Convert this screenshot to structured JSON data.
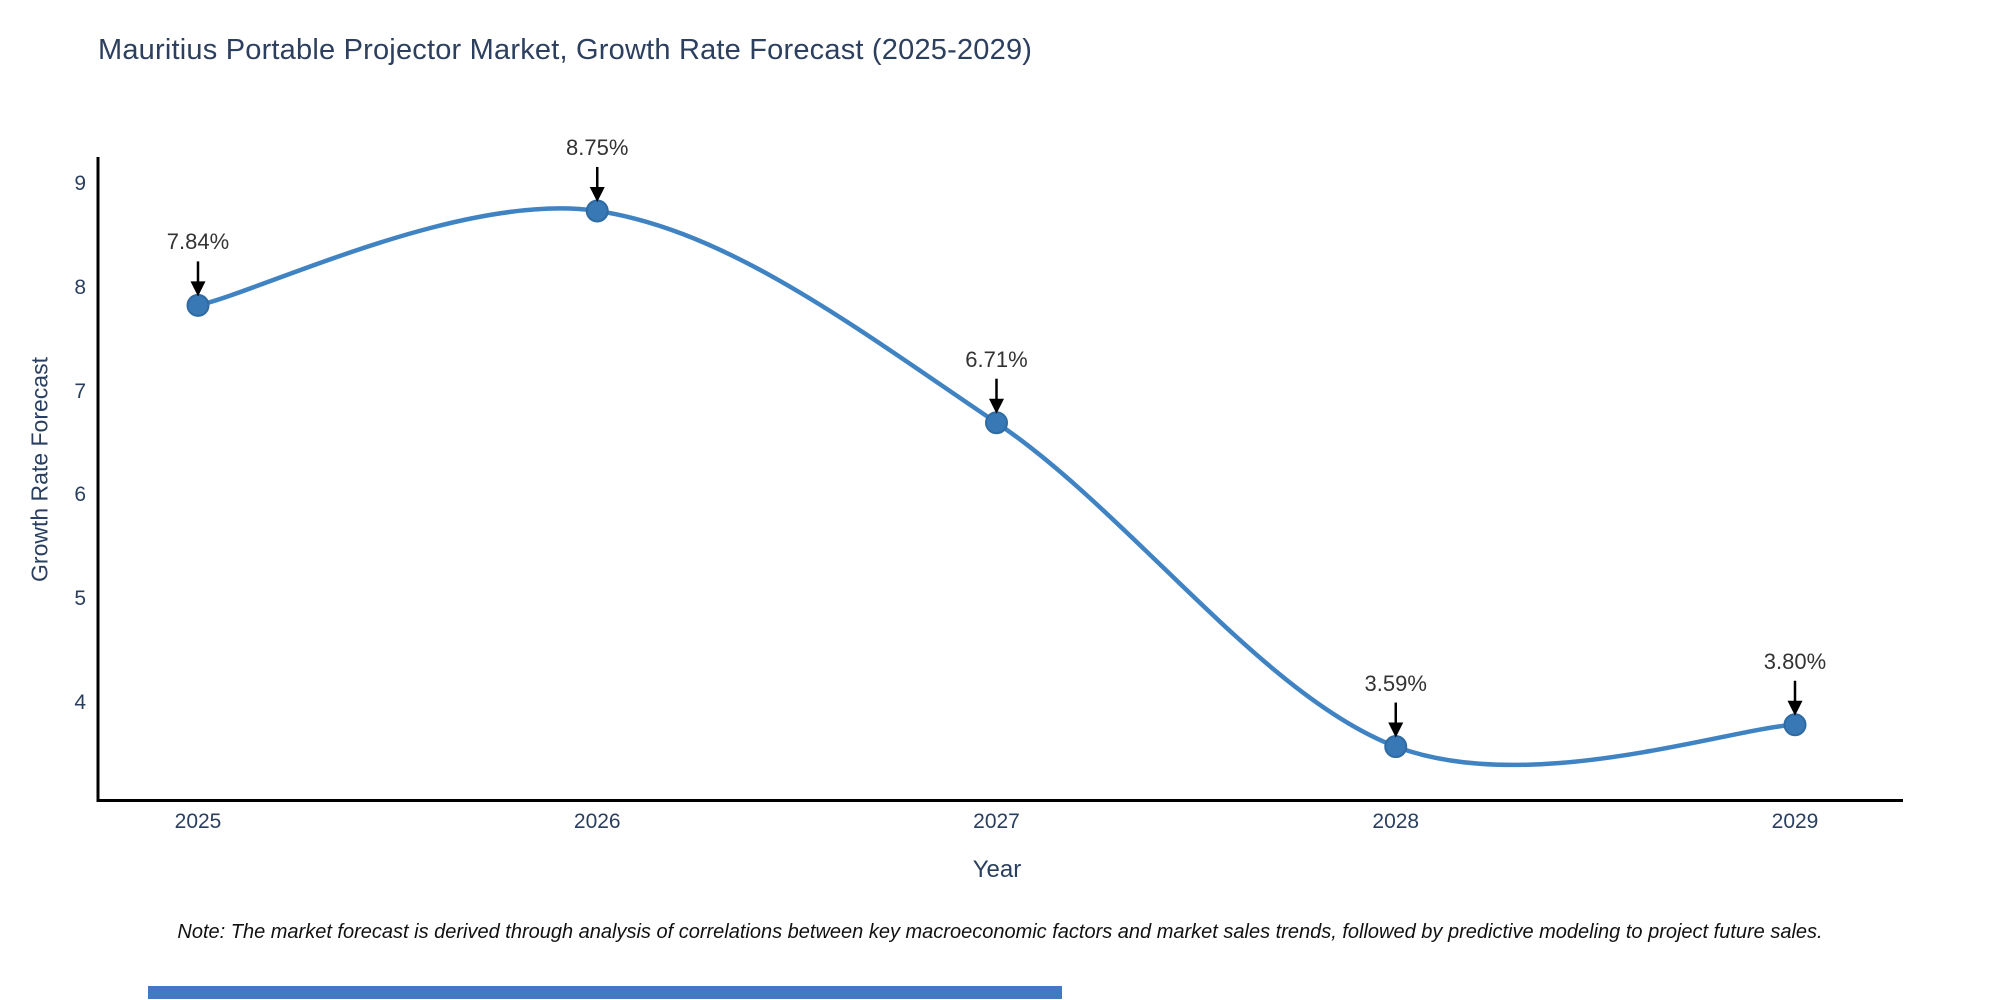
{
  "title": "Mauritius Portable Projector Market, Growth Rate Forecast (2025-2029)",
  "note": "Note: The market forecast is derived through analysis of correlations between key macroeconomic factors and market sales trends, followed by predictive modeling to project future sales.",
  "footer_bar_color": "#4179c5",
  "chart_data": {
    "type": "line",
    "line_shape": "spline",
    "title": "Mauritius Portable Projector Market, Growth Rate Forecast (2025-2029)",
    "xlabel": "Year",
    "ylabel": "Growth Rate Forecast",
    "x": [
      2025,
      2026,
      2027,
      2028,
      2029
    ],
    "values": [
      7.84,
      8.75,
      6.71,
      3.59,
      3.8
    ],
    "point_labels": [
      "7.84%",
      "8.75%",
      "6.71%",
      "3.59%",
      "3.80%"
    ],
    "y_ticks": [
      4,
      5,
      6,
      7,
      8,
      9
    ],
    "ylim": [
      3.09,
      9.25
    ],
    "grid": false,
    "legend": "none",
    "line_color": "#4083c3",
    "marker_color": "#3878b4",
    "marker_edge_color": "#2f6ba3",
    "axis_color": "#000000",
    "annotation_arrow_color": "#000000"
  }
}
